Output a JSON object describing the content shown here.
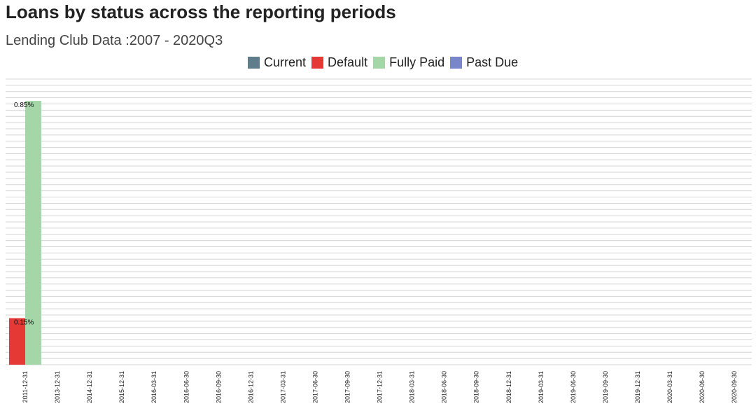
{
  "chart_data": {
    "type": "bar",
    "title": "Loans by status across the reporting periods",
    "subtitle": "Lending Club Data :2007 - 2020Q3",
    "xlabel": "",
    "ylabel": "",
    "categories": [
      "2011-12-31",
      "2013-12-31",
      "2014-12-31",
      "2015-12-31",
      "2016-03-31",
      "2016-06-30",
      "2016-09-30",
      "2016-12-31",
      "2017-03-31",
      "2017-06-30",
      "2017-09-30",
      "2017-12-31",
      "2018-03-31",
      "2018-06-30",
      "2018-09-30",
      "2018-12-31",
      "2019-03-31",
      "2019-06-30",
      "2019-09-30",
      "2019-12-31",
      "2020-03-31",
      "2020-06-30",
      "2020-09-30"
    ],
    "series": [
      {
        "name": "Current",
        "color": "#607d8b",
        "values": [
          0,
          0,
          0,
          0,
          0,
          0,
          0,
          0,
          0,
          0,
          0,
          0,
          0,
          0,
          0,
          0,
          0,
          0,
          0,
          0,
          0,
          0,
          0
        ],
        "labels": [
          "",
          "",
          "",
          "",
          "",
          "",
          "",
          "",
          "",
          "",
          "",
          "",
          "",
          "",
          "",
          "",
          "",
          "",
          "",
          "",
          "",
          "",
          ""
        ]
      },
      {
        "name": "Default",
        "color": "#e53935",
        "values": [
          0.15,
          0,
          0,
          0,
          0,
          0,
          0,
          0,
          0,
          0,
          0,
          0,
          0,
          0,
          0,
          0,
          0,
          0,
          0,
          0,
          0,
          0,
          0
        ],
        "labels": [
          "0.15%",
          "",
          "",
          "",
          "",
          "",
          "",
          "",
          "",
          "",
          "",
          "",
          "",
          "",
          "",
          "",
          "",
          "",
          "",
          "",
          "",
          "",
          ""
        ]
      },
      {
        "name": "Fully Paid",
        "color": "#a5d6a7",
        "values": [
          0.85,
          0,
          0,
          0,
          0,
          0,
          0,
          0,
          0,
          0,
          0,
          0,
          0,
          0,
          0,
          0,
          0,
          0,
          0,
          0,
          0,
          0,
          0
        ],
        "labels": [
          "0.85%",
          "",
          "",
          "",
          "",
          "",
          "",
          "",
          "",
          "",
          "",
          "",
          "",
          "",
          "",
          "",
          "",
          "",
          "",
          "",
          "",
          "",
          ""
        ]
      },
      {
        "name": "Past Due",
        "color": "#7986cb",
        "values": [
          0,
          0,
          0,
          0,
          0,
          0,
          0,
          0,
          0,
          0,
          0,
          0,
          0,
          0,
          0,
          0,
          0,
          0,
          0,
          0,
          0,
          0,
          0
        ],
        "labels": [
          "",
          "",
          "",
          "",
          "",
          "",
          "",
          "",
          "",
          "",
          "",
          "",
          "",
          "",
          "",
          "",
          "",
          "",
          "",
          "",
          "",
          "",
          ""
        ]
      }
    ],
    "ylim": [
      0,
      0.92
    ],
    "grid": "horizontal",
    "legend_position": "top"
  }
}
